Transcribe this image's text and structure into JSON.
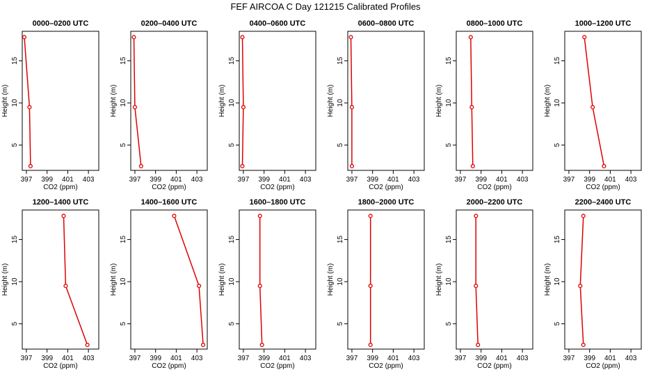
{
  "figure_title": "FEF AIRCOA C  Day 121215  Calibrated Profiles",
  "chart_data": [
    {
      "type": "line",
      "title": "0000–0200 UTC",
      "xlabel": "CO2 (ppm)",
      "ylabel": "Height (m)",
      "xlim": [
        396.6,
        404.0
      ],
      "ylim": [
        2.0,
        18.5
      ],
      "xticks": [
        "397",
        "399",
        "401",
        "403"
      ],
      "yticks": [
        "5",
        "10",
        "15"
      ],
      "series": [
        {
          "x": [
            396.8,
            397.3,
            397.4
          ],
          "y": [
            17.8,
            9.5,
            2.5
          ]
        }
      ]
    },
    {
      "type": "line",
      "title": "0200–0400 UTC",
      "xlabel": "CO2 (ppm)",
      "ylabel": "Height (m)",
      "xlim": [
        396.6,
        404.0
      ],
      "ylim": [
        2.0,
        18.5
      ],
      "xticks": [
        "397",
        "399",
        "401",
        "403"
      ],
      "yticks": [
        "5",
        "10",
        "15"
      ],
      "series": [
        {
          "x": [
            396.9,
            397.0,
            397.6
          ],
          "y": [
            17.8,
            9.5,
            2.5
          ]
        }
      ]
    },
    {
      "type": "line",
      "title": "0400–0600 UTC",
      "xlabel": "CO2 (ppm)",
      "ylabel": "Height (m)",
      "xlim": [
        396.6,
        404.0
      ],
      "ylim": [
        2.0,
        18.5
      ],
      "xticks": [
        "397",
        "399",
        "401",
        "403"
      ],
      "yticks": [
        "5",
        "10",
        "15"
      ],
      "series": [
        {
          "x": [
            396.9,
            397.0,
            396.9
          ],
          "y": [
            17.8,
            9.5,
            2.5
          ]
        }
      ]
    },
    {
      "type": "line",
      "title": "0600–0800 UTC",
      "xlabel": "CO2 (ppm)",
      "ylabel": "Height (m)",
      "xlim": [
        396.6,
        404.0
      ],
      "ylim": [
        2.0,
        18.5
      ],
      "xticks": [
        "397",
        "399",
        "401",
        "403"
      ],
      "yticks": [
        "5",
        "10",
        "15"
      ],
      "series": [
        {
          "x": [
            396.9,
            397.0,
            397.0
          ],
          "y": [
            17.8,
            9.5,
            2.5
          ]
        }
      ]
    },
    {
      "type": "line",
      "title": "0800–1000 UTC",
      "xlabel": "CO2 (ppm)",
      "ylabel": "Height (m)",
      "xlim": [
        396.6,
        404.0
      ],
      "ylim": [
        2.0,
        18.5
      ],
      "xticks": [
        "397",
        "399",
        "401",
        "403"
      ],
      "yticks": [
        "5",
        "10",
        "15"
      ],
      "series": [
        {
          "x": [
            398.0,
            398.1,
            398.2
          ],
          "y": [
            17.8,
            9.5,
            2.5
          ]
        }
      ]
    },
    {
      "type": "line",
      "title": "1000–1200 UTC",
      "xlabel": "CO2 (ppm)",
      "ylabel": "Height (m)",
      "xlim": [
        396.6,
        404.0
      ],
      "ylim": [
        2.0,
        18.5
      ],
      "xticks": [
        "397",
        "399",
        "401",
        "403"
      ],
      "yticks": [
        "5",
        "10",
        "15"
      ],
      "series": [
        {
          "x": [
            398.5,
            399.3,
            400.4
          ],
          "y": [
            17.8,
            9.5,
            2.5
          ]
        }
      ]
    },
    {
      "type": "line",
      "title": "1200–1400 UTC",
      "xlabel": "CO2 (ppm)",
      "ylabel": "Height (m)",
      "xlim": [
        396.6,
        404.0
      ],
      "ylim": [
        2.0,
        18.5
      ],
      "xticks": [
        "397",
        "399",
        "401",
        "403"
      ],
      "yticks": [
        "5",
        "10",
        "15"
      ],
      "series": [
        {
          "x": [
            400.6,
            400.8,
            402.9
          ],
          "y": [
            17.8,
            9.5,
            2.5
          ]
        }
      ]
    },
    {
      "type": "line",
      "title": "1400–1600 UTC",
      "xlabel": "CO2 (ppm)",
      "ylabel": "Height (m)",
      "xlim": [
        396.6,
        404.0
      ],
      "ylim": [
        2.0,
        18.5
      ],
      "xticks": [
        "397",
        "399",
        "401",
        "403"
      ],
      "yticks": [
        "5",
        "10",
        "15"
      ],
      "series": [
        {
          "x": [
            400.8,
            403.2,
            403.6
          ],
          "y": [
            17.8,
            9.5,
            2.5
          ]
        }
      ]
    },
    {
      "type": "line",
      "title": "1600–1800 UTC",
      "xlabel": "CO2 (ppm)",
      "ylabel": "Height (m)",
      "xlim": [
        396.6,
        404.0
      ],
      "ylim": [
        2.0,
        18.5
      ],
      "xticks": [
        "397",
        "399",
        "401",
        "403"
      ],
      "yticks": [
        "5",
        "10",
        "15"
      ],
      "series": [
        {
          "x": [
            398.6,
            398.6,
            398.8
          ],
          "y": [
            17.8,
            9.5,
            2.5
          ]
        }
      ]
    },
    {
      "type": "line",
      "title": "1800–2000 UTC",
      "xlabel": "CO2 (ppm)",
      "ylabel": "Height (m)",
      "xlim": [
        396.6,
        404.0
      ],
      "ylim": [
        2.0,
        18.5
      ],
      "xticks": [
        "397",
        "399",
        "401",
        "403"
      ],
      "yticks": [
        "5",
        "10",
        "15"
      ],
      "series": [
        {
          "x": [
            398.8,
            398.8,
            398.8
          ],
          "y": [
            17.8,
            9.5,
            2.5
          ]
        }
      ]
    },
    {
      "type": "line",
      "title": "2000–2200 UTC",
      "xlabel": "CO2 (ppm)",
      "ylabel": "Height (m)",
      "xlim": [
        396.6,
        404.0
      ],
      "ylim": [
        2.0,
        18.5
      ],
      "xticks": [
        "397",
        "399",
        "401",
        "403"
      ],
      "yticks": [
        "5",
        "10",
        "15"
      ],
      "series": [
        {
          "x": [
            398.5,
            398.5,
            398.7
          ],
          "y": [
            17.8,
            9.5,
            2.5
          ]
        }
      ]
    },
    {
      "type": "line",
      "title": "2200–2400 UTC",
      "xlabel": "CO2 (ppm)",
      "ylabel": "Height (m)",
      "xlim": [
        396.6,
        404.0
      ],
      "ylim": [
        2.0,
        18.5
      ],
      "xticks": [
        "397",
        "399",
        "401",
        "403"
      ],
      "yticks": [
        "5",
        "10",
        "15"
      ],
      "series": [
        {
          "x": [
            398.4,
            398.1,
            398.4
          ],
          "y": [
            17.8,
            9.5,
            2.5
          ]
        }
      ]
    }
  ],
  "style": {
    "line_color": "#dd0000",
    "marker": "open-circle"
  }
}
